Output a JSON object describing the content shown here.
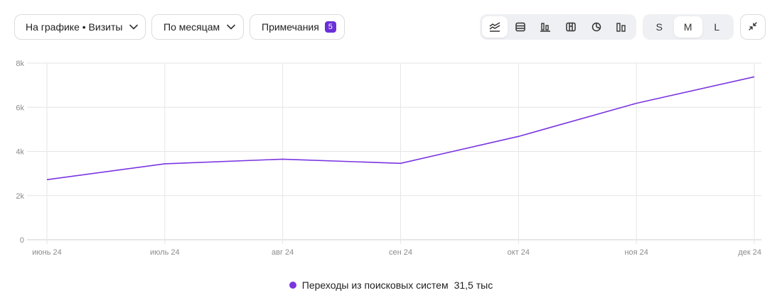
{
  "toolbar": {
    "series_select": "На графике • Визиты",
    "period_select": "По месяцам",
    "notes_label": "Примечания",
    "notes_count": "5",
    "chart_type_icons": [
      "line-chart-icon",
      "stacked-area-icon",
      "bar-chart-icon",
      "stacked-bar-icon",
      "pie-chart-icon",
      "column-chart-icon"
    ],
    "active_chart_type": "line-chart-icon",
    "sizes": [
      "S",
      "M",
      "L"
    ],
    "active_size": "M",
    "collapse_icon": "collapse-icon"
  },
  "colors": {
    "series": "#7a35e0",
    "badge": "#6a2fd8",
    "grid": "#e6e6e6"
  },
  "legend": {
    "name": "Переходы из поисковых систем",
    "total": "31,5 тыс"
  },
  "chart_data": {
    "type": "line",
    "categories": [
      "июнь 24",
      "июль 24",
      "авг 24",
      "сен 24",
      "окт 24",
      "ноя 24",
      "дек 24"
    ],
    "series": [
      {
        "name": "Переходы из поисковых систем",
        "values": [
          2720,
          3440,
          3650,
          3460,
          4680,
          6180,
          7380
        ]
      }
    ],
    "yticks": [
      "0",
      "2k",
      "4k",
      "6k",
      "8k"
    ],
    "ytick_values": [
      0,
      2000,
      4000,
      6000,
      8000
    ],
    "ylim": [
      0,
      8000
    ],
    "grid": true,
    "legend_position": "bottom-center"
  }
}
